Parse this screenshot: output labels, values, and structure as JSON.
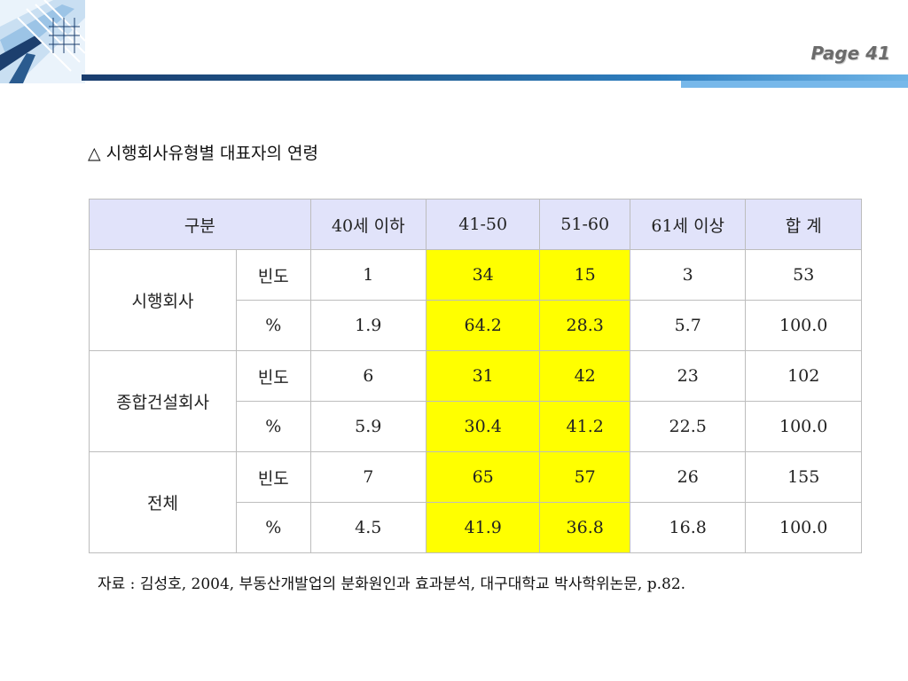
{
  "header": {
    "page_label": "Page 41"
  },
  "title": "△ 시행회사유형별 대표자의 연령",
  "table": {
    "columns": [
      "구분",
      "40세 이하",
      "41-50",
      "51-60",
      "61세 이상",
      "합 계"
    ],
    "groups": [
      {
        "name": "시행회사",
        "rows": [
          {
            "label": "빈도",
            "values": [
              "1",
              "34",
              "15",
              "3",
              "53"
            ]
          },
          {
            "label": "%",
            "values": [
              "1.9",
              "64.2",
              "28.3",
              "5.7",
              "100.0"
            ]
          }
        ]
      },
      {
        "name": "종합건설회사",
        "rows": [
          {
            "label": "빈도",
            "values": [
              "6",
              "31",
              "42",
              "23",
              "102"
            ]
          },
          {
            "label": "%",
            "values": [
              "5.9",
              "30.4",
              "41.2",
              "22.5",
              "100.0"
            ]
          }
        ]
      },
      {
        "name": "전체",
        "rows": [
          {
            "label": "빈도",
            "values": [
              "7",
              "65",
              "57",
              "26",
              "155"
            ]
          },
          {
            "label": "%",
            "values": [
              "4.5",
              "41.9",
              "36.8",
              "16.8",
              "100.0"
            ]
          }
        ]
      }
    ],
    "highlight_color": "#ffff00",
    "header_color": "#e1e3fa"
  },
  "source": "자료 : 김성호, 2004, 부동산개발업의 분화원인과 효과분석, 대구대학교 박사학위논문, p.82."
}
